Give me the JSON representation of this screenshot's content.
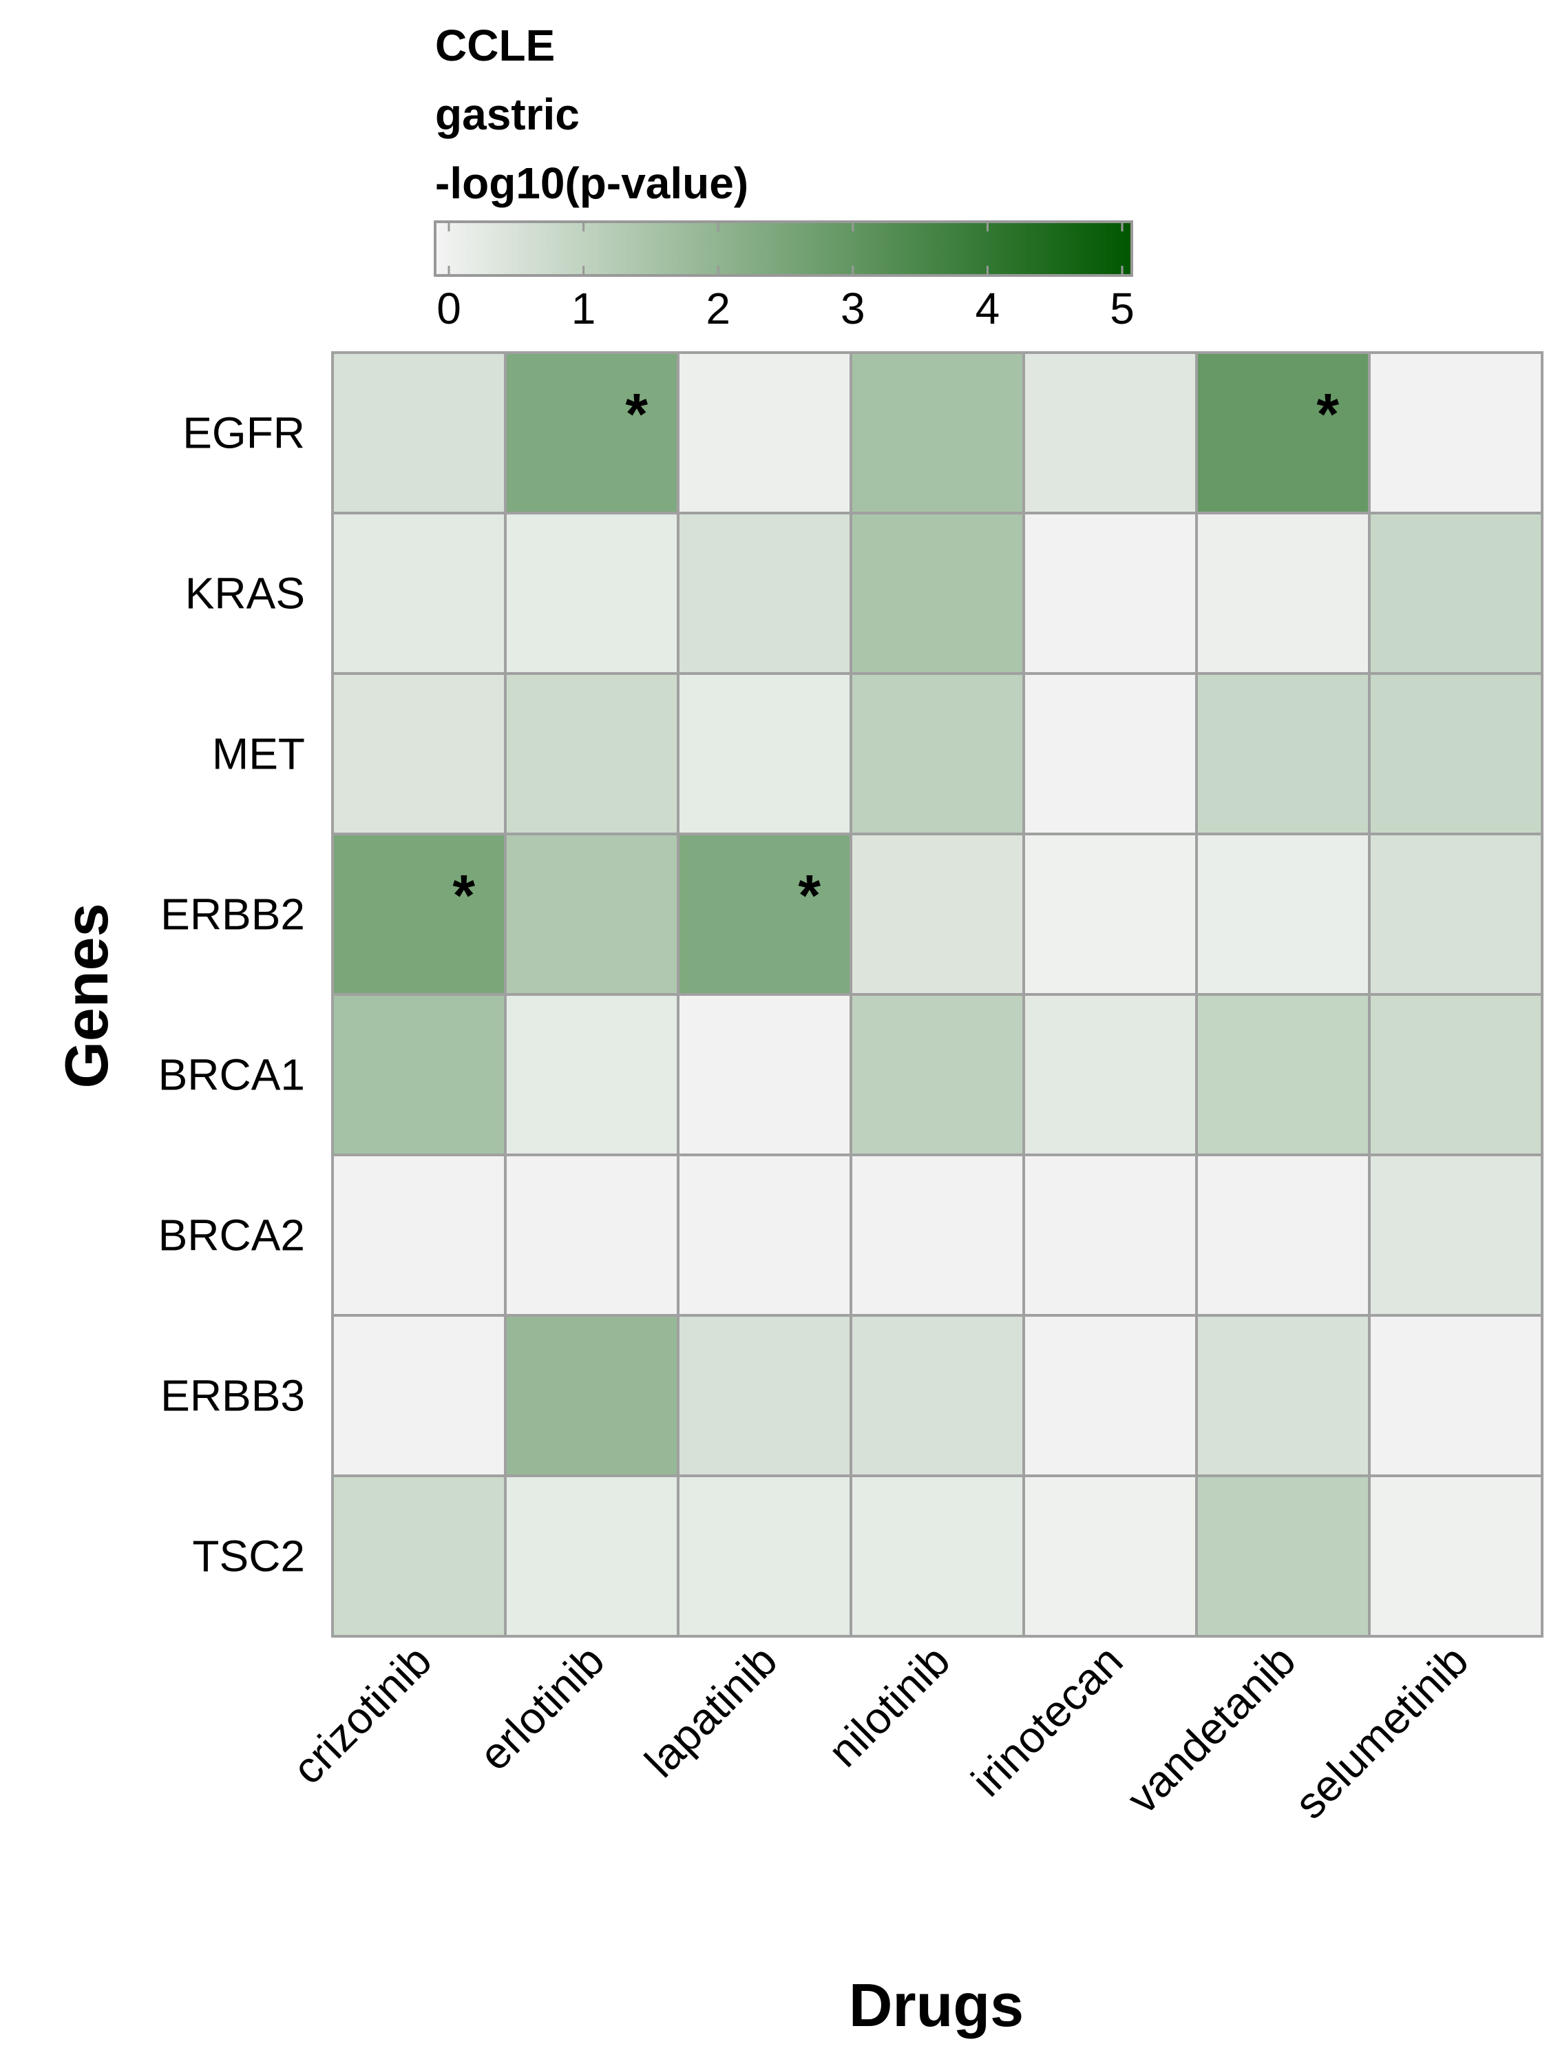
{
  "chart_data": {
    "type": "heatmap",
    "legend": {
      "title_lines": [
        "CCLE",
        "gastric",
        "-log10(p-value)"
      ],
      "ticks": [
        0,
        1,
        2,
        3,
        4,
        5
      ],
      "tick_labels": [
        "0",
        "1",
        "2",
        "3",
        "4",
        "5"
      ],
      "range": [
        0,
        5
      ],
      "colors": [
        "#f4f4f4",
        "#005700"
      ],
      "placement": "top"
    },
    "xlabel": "Drugs",
    "ylabel": "Genes",
    "columns": [
      "crizotinib",
      "erlotinib",
      "lapatinib",
      "nilotinib",
      "irinotecan",
      "vandetanib",
      "selumetinib"
    ],
    "rows": [
      "EGFR",
      "KRAS",
      "MET",
      "ERBB2",
      "BRCA1",
      "BRCA2",
      "ERBB3",
      "TSC2"
    ],
    "values": [
      [
        0.6,
        2.4,
        0.15,
        1.6,
        0.4,
        2.9,
        0.05
      ],
      [
        0.35,
        0.3,
        0.6,
        1.5,
        0.05,
        0.15,
        0.9
      ],
      [
        0.5,
        0.8,
        0.3,
        1.1,
        0.05,
        0.9,
        0.9
      ],
      [
        2.5,
        1.4,
        2.4,
        0.5,
        0.1,
        0.2,
        0.6
      ],
      [
        1.6,
        0.3,
        0.05,
        1.1,
        0.35,
        1.0,
        0.8
      ],
      [
        0.05,
        0.05,
        0.05,
        0.05,
        0.05,
        0.05,
        0.4
      ],
      [
        0.05,
        1.9,
        0.6,
        0.6,
        0.05,
        0.6,
        0.05
      ],
      [
        0.8,
        0.3,
        0.3,
        0.3,
        0.1,
        1.1,
        0.1
      ]
    ],
    "significance_marker": "*",
    "significant": [
      [
        "EGFR",
        "erlotinib"
      ],
      [
        "EGFR",
        "vandetanib"
      ],
      [
        "ERBB2",
        "crizotinib"
      ],
      [
        "ERBB2",
        "lapatinib"
      ]
    ]
  }
}
